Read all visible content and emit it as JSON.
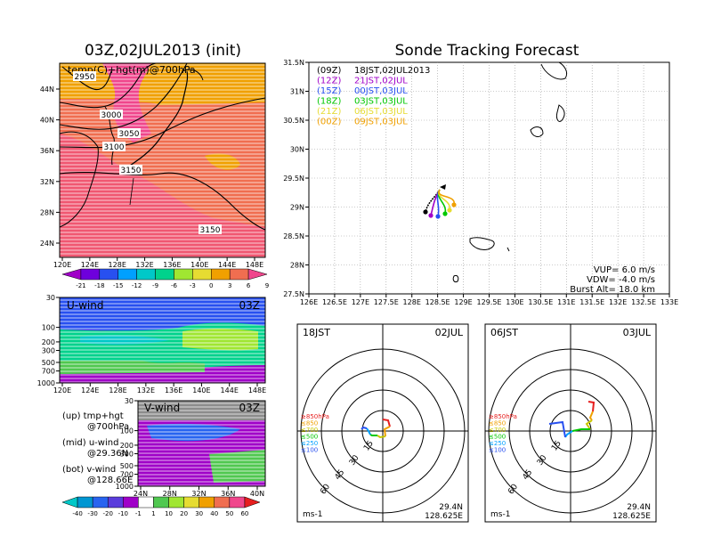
{
  "left_title": "03Z,02JUL2013 (init)",
  "right_title": "Sonde Tracking Forecast",
  "map_panel": {
    "label": "temp(C)+hgt(m)@700hPa",
    "y_ticks": [
      "44N",
      "40N",
      "36N",
      "32N",
      "28N",
      "24N"
    ],
    "x_ticks": [
      "120E",
      "124E",
      "128E",
      "132E",
      "136E",
      "140E",
      "144E",
      "148E"
    ],
    "contour_labels": [
      "2950",
      "3000",
      "3050",
      "3100",
      "3150",
      "3150"
    ],
    "colorbar_ticks": [
      "-21",
      "-18",
      "-15",
      "-12",
      "-9",
      "-6",
      "-3",
      "0",
      "3",
      "6",
      "9"
    ],
    "colors": [
      "#a000c8",
      "#6e00dc",
      "#2850f0",
      "#00a0ff",
      "#00c8c8",
      "#00d28c",
      "#a0e632",
      "#e6dc32",
      "#f0a000",
      "#f06e50",
      "#f0468c"
    ]
  },
  "u_panel": {
    "label": "U-wind",
    "time": "03Z",
    "y_ticks": [
      "30",
      "100",
      "200",
      "300",
      "500",
      "700",
      "1000"
    ],
    "x_ticks": [
      "120E",
      "124E",
      "128E",
      "132E",
      "136E",
      "140E",
      "144E",
      "148E"
    ]
  },
  "v_panel": {
    "label": "V-wind",
    "time": "03Z",
    "y_ticks": [
      "30",
      "100",
      "200",
      "300",
      "500",
      "700",
      "1000"
    ],
    "x_ticks": [
      "24N",
      "28N",
      "32N",
      "36N",
      "40N"
    ],
    "colorbar_ticks": [
      "-40",
      "-30",
      "-20",
      "-10",
      "-1",
      "1",
      "10",
      "20",
      "30",
      "40",
      "50",
      "60"
    ],
    "colors": [
      "#00c8c8",
      "#0096d2",
      "#2864f0",
      "#5a3cdc",
      "#a000c8",
      "#ffffff",
      "#50c850",
      "#a0e632",
      "#e6dc32",
      "#f0a000",
      "#f06e50",
      "#f0468c",
      "#e61e1e"
    ]
  },
  "side_notes": [
    {
      "line1": "(up) tmp+hgt",
      "line2": "@700hPa"
    },
    {
      "line1": "(mid) u-wind",
      "line2": "@29.36N"
    },
    {
      "line1": "(bot) v-wind",
      "line2": "@128.66E"
    }
  ],
  "track_panel": {
    "legend": [
      {
        "code": "(09Z)",
        "time": "18JST,02JUL2013",
        "color": "#000000"
      },
      {
        "code": "(12Z)",
        "time": "21JST,02JUL",
        "color": "#a000c8"
      },
      {
        "code": "(15Z)",
        "time": "00JST,03JUL",
        "color": "#2850f0"
      },
      {
        "code": "(18Z)",
        "time": "03JST,03JUL",
        "color": "#00c800"
      },
      {
        "code": "(21Z)",
        "time": "06JST,03JUL",
        "color": "#e6dc32"
      },
      {
        "code": "(00Z)",
        "time": "09JST,03JUL",
        "color": "#f0a000"
      }
    ],
    "y_ticks": [
      "31.5N",
      "31N",
      "30.5N",
      "30N",
      "29.5N",
      "29N",
      "28.5N",
      "28N",
      "27.5N"
    ],
    "x_ticks": [
      "126E",
      "126.5E",
      "127E",
      "127.5E",
      "128E",
      "128.5E",
      "129E",
      "129.5E",
      "130E",
      "130.5E",
      "131E",
      "131.5E",
      "132E",
      "132.5E",
      "133E"
    ],
    "params": [
      "VUP= 6.0 m/s",
      "VDW= -4.0 m/s",
      "Burst Alt= 18.0 km"
    ]
  },
  "polar_panels": [
    {
      "left": "18JST",
      "right": "02JUL",
      "lat": "29.4N",
      "lon": "128.625E",
      "unit": "ms-1",
      "ring_labels": [
        "15",
        "30",
        "45",
        "60"
      ],
      "levels": [
        "≥850hPa",
        "≤850",
        "≤700",
        "≤500",
        "≤250",
        "≤100"
      ]
    },
    {
      "left": "06JST",
      "right": "03JUL",
      "lat": "29.4N",
      "lon": "128.625E",
      "unit": "ms-1",
      "ring_labels": [
        "15",
        "30",
        "45",
        "60"
      ],
      "levels": [
        "≥850hPa",
        "≤850",
        "≤700",
        "≤500",
        "≤250",
        "≤100"
      ]
    }
  ],
  "level_colors": [
    "#e61e1e",
    "#f0a000",
    "#c8c800",
    "#00c800",
    "#00a0ff",
    "#2850f0"
  ]
}
